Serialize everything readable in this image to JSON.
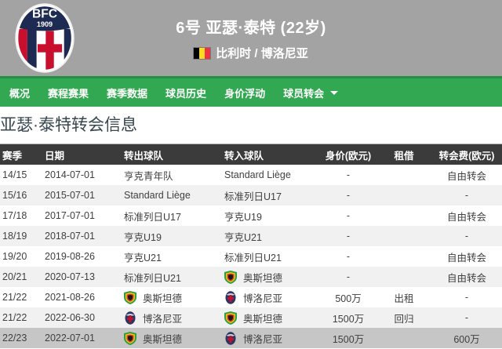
{
  "header": {
    "title": "6号 亚瑟·泰特 (22岁)",
    "nationality": "比利时 / 博洛尼亚",
    "crest": {
      "club": "博洛尼亚",
      "initials": "BFC",
      "year": "1909"
    },
    "flag": "belgium"
  },
  "nav": {
    "items": [
      {
        "label": "概况",
        "dropdown": false
      },
      {
        "label": "赛程赛果",
        "dropdown": false
      },
      {
        "label": "赛季数据",
        "dropdown": false
      },
      {
        "label": "球员历史",
        "dropdown": false
      },
      {
        "label": "身价浮动",
        "dropdown": false
      },
      {
        "label": "球员转会",
        "dropdown": true
      }
    ]
  },
  "section": {
    "title": "亚瑟·泰特转会信息"
  },
  "table": {
    "columns": [
      "赛季",
      "日期",
      "转出球队",
      "转入球队",
      "身价(欧元)",
      "租借",
      "转会费(欧元)"
    ],
    "rows": [
      {
        "season": "14/15",
        "date": "2014-07-01",
        "from": {
          "name": "亨克青年队",
          "logo": null
        },
        "to": {
          "name": "Standard Liège",
          "logo": null
        },
        "value": "-",
        "loan": "",
        "fee": "自由转会",
        "highlight": false
      },
      {
        "season": "15/16",
        "date": "2015-07-01",
        "from": {
          "name": "Standard Liège",
          "logo": null
        },
        "to": {
          "name": "标准列日U17",
          "logo": null
        },
        "value": "-",
        "loan": "",
        "fee": "-",
        "highlight": false
      },
      {
        "season": "17/18",
        "date": "2017-07-01",
        "from": {
          "name": "标准列日U17",
          "logo": null
        },
        "to": {
          "name": "亨克U19",
          "logo": null
        },
        "value": "-",
        "loan": "",
        "fee": "自由转会",
        "highlight": false
      },
      {
        "season": "18/19",
        "date": "2018-07-01",
        "from": {
          "name": "亨克U19",
          "logo": null
        },
        "to": {
          "name": "亨克U21",
          "logo": null
        },
        "value": "-",
        "loan": "",
        "fee": "-",
        "highlight": false
      },
      {
        "season": "19/20",
        "date": "2019-08-26",
        "from": {
          "name": "亨克U21",
          "logo": null
        },
        "to": {
          "name": "标准列日U21",
          "logo": null
        },
        "value": "-",
        "loan": "",
        "fee": "自由转会",
        "highlight": false
      },
      {
        "season": "20/21",
        "date": "2020-07-13",
        "from": {
          "name": "标准列日U21",
          "logo": null
        },
        "to": {
          "name": "奥斯坦德",
          "logo": "oostende"
        },
        "value": "-",
        "loan": "",
        "fee": "自由转会",
        "highlight": false
      },
      {
        "season": "21/22",
        "date": "2021-08-26",
        "from": {
          "name": "奥斯坦德",
          "logo": "oostende"
        },
        "to": {
          "name": "博洛尼亚",
          "logo": "bologna"
        },
        "value": "500万",
        "loan": "出租",
        "fee": "-",
        "highlight": false
      },
      {
        "season": "21/22",
        "date": "2022-06-30",
        "from": {
          "name": "博洛尼亚",
          "logo": "bologna"
        },
        "to": {
          "name": "奥斯坦德",
          "logo": "oostende"
        },
        "value": "1500万",
        "loan": "回归",
        "fee": "-",
        "highlight": false
      },
      {
        "season": "22/23",
        "date": "2022-07-01",
        "from": {
          "name": "奥斯坦德",
          "logo": "oostende"
        },
        "to": {
          "name": "博洛尼亚",
          "logo": "bologna"
        },
        "value": "1500万",
        "loan": "",
        "fee": "600万",
        "highlight": true
      }
    ]
  },
  "colors": {
    "nav_green": "#33a852",
    "nav_border_green": "#278f43",
    "header_gray": "#a3a3a3",
    "table_header_bg": "#3b3b3b",
    "row_alt": "#f1f1f1",
    "row_highlight": "#c6c6c6",
    "title_text": "#37474f",
    "flag_black": "#000000",
    "flag_yellow": "#fdda24",
    "flag_red": "#ef3340"
  }
}
